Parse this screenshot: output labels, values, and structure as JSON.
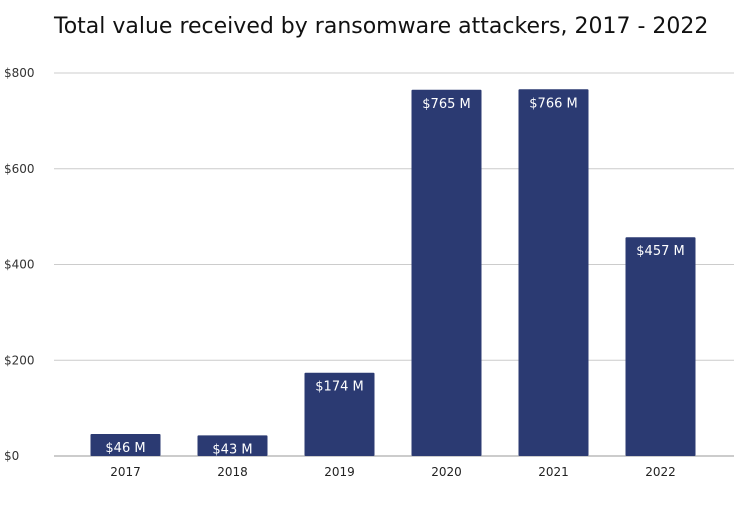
{
  "chart_data": {
    "type": "bar",
    "title": "Total value received by ransomware attackers, 2017 - 2022",
    "xlabel": "",
    "ylabel": "",
    "categories": [
      "2017",
      "2018",
      "2019",
      "2020",
      "2021",
      "2022"
    ],
    "values": [
      46,
      43,
      174,
      765,
      766,
      457
    ],
    "data_labels": [
      "$46 M",
      "$43 M",
      "$174 M",
      "$765 M",
      "$766 M",
      "$457 M"
    ],
    "ylim": [
      0,
      800
    ],
    "yticks": [
      0,
      200,
      400,
      600,
      800
    ],
    "ytick_labels": [
      "$0",
      "$200",
      "$400",
      "$600",
      "$800"
    ],
    "grid": true,
    "legend": "none",
    "bar_color": "#2b3a72",
    "label_color": "#ffffff",
    "grid_color": "#cccccc"
  }
}
